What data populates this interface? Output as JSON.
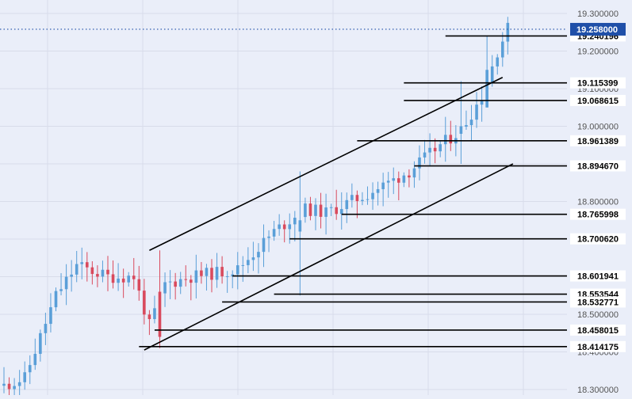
{
  "chart_data": {
    "type": "candlestick",
    "instrument": "",
    "y_axis": {
      "ylim": [
        18.29,
        19.33
      ],
      "ticks": [
        19.3,
        19.2,
        19.1,
        19.0,
        18.9,
        18.8,
        18.7,
        18.6,
        18.5,
        18.4,
        18.3
      ],
      "tick_labels": [
        "19.300000",
        "19.200000",
        "19.100000",
        "19.000000",
        "18.900000",
        "18.800000",
        "18.700000",
        "18.600000",
        "18.500000",
        "18.400000",
        "18.300000"
      ]
    },
    "current_price": {
      "value": 19.258,
      "label": "19.258000"
    },
    "levels": [
      {
        "value": 19.240196,
        "label": "19.240196",
        "start_bar": 85
      },
      {
        "value": 19.115399,
        "label": "19.115399",
        "start_bar": 77
      },
      {
        "value": 19.068615,
        "label": "19.068615",
        "start_bar": 77
      },
      {
        "value": 18.961389,
        "label": "18.961389",
        "start_bar": 68
      },
      {
        "value": 18.89467,
        "label": "18.894670",
        "start_bar": 79
      },
      {
        "value": 18.765998,
        "label": "18.765998",
        "start_bar": 65
      },
      {
        "value": 18.70062,
        "label": "18.700620",
        "start_bar": 55
      },
      {
        "value": 18.601941,
        "label": "18.601941",
        "start_bar": 44
      },
      {
        "value": 18.553544,
        "label": "18.553544",
        "start_bar": 52
      },
      {
        "value": 18.532771,
        "label": "18.532771",
        "start_bar": 42
      },
      {
        "value": 18.458015,
        "label": "18.458015",
        "start_bar": 29
      },
      {
        "value": 18.414175,
        "label": "18.414175",
        "start_bar": 26
      }
    ],
    "channel": {
      "upper": [
        {
          "bar": 28,
          "price": 18.67
        },
        {
          "bar": 96,
          "price": 19.13
        }
      ],
      "lower": [
        {
          "bar": 27,
          "price": 18.405
        },
        {
          "bar": 98,
          "price": 18.9
        }
      ]
    },
    "colors": {
      "up": "#5a9fd8",
      "down": "#d94a5d",
      "levels": "#000000",
      "channel": "#000000",
      "price_line": "#1f4fa8",
      "price_tag": "#1f4fa8",
      "axis_text": "#555555",
      "level_label_bg": "#ffffff",
      "background": "#eaeef9",
      "grid": "#d8dcea"
    }
  }
}
